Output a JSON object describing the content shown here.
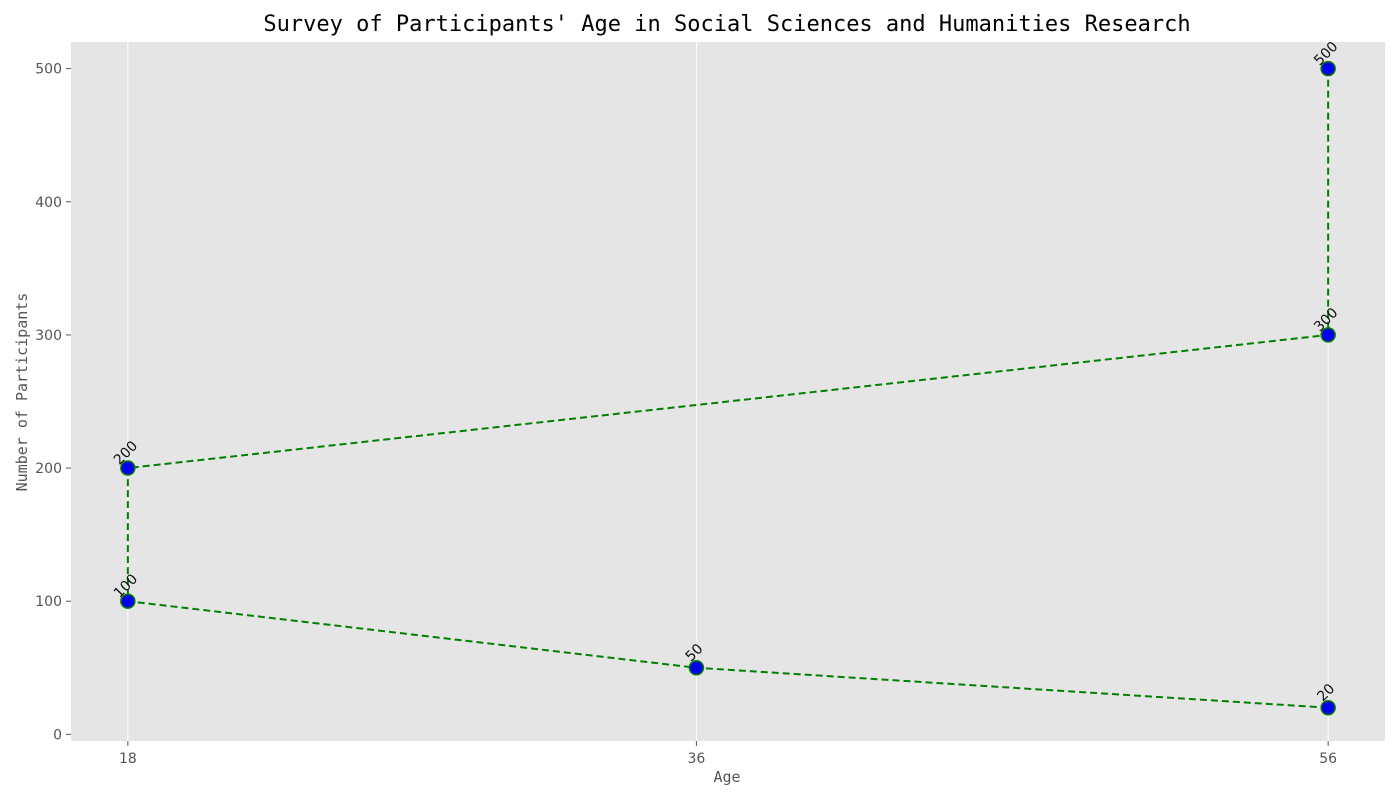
{
  "chart_data": {
    "type": "line",
    "title": "Survey of Participants' Age in Social Sciences and Humanities Research",
    "xlabel": "Age",
    "ylabel": "Number of Participants",
    "x_ticks": [
      18,
      36,
      56
    ],
    "y_ticks": [
      0,
      100,
      200,
      300,
      400,
      500
    ],
    "xlim": [
      16.2,
      57.8
    ],
    "ylim": [
      -5,
      520
    ],
    "grid": "vertical",
    "points": [
      {
        "x": 18,
        "y": 100
      },
      {
        "x": 18,
        "y": 200
      },
      {
        "x": 56,
        "y": 300
      },
      {
        "x": 56,
        "y": 500
      },
      {
        "x": 56,
        "y": 20
      },
      {
        "x": 36,
        "y": 50
      }
    ],
    "path_order": [
      [
        56,
        500
      ],
      [
        56,
        300
      ],
      [
        18,
        200
      ],
      [
        18,
        100
      ],
      [
        36,
        50
      ],
      [
        56,
        20
      ]
    ],
    "colors": {
      "line": "#008000",
      "marker_fill": "#0000ee",
      "marker_edge": "#008000",
      "plot_bg": "#e5e5e5",
      "grid": "#ffffff"
    }
  }
}
